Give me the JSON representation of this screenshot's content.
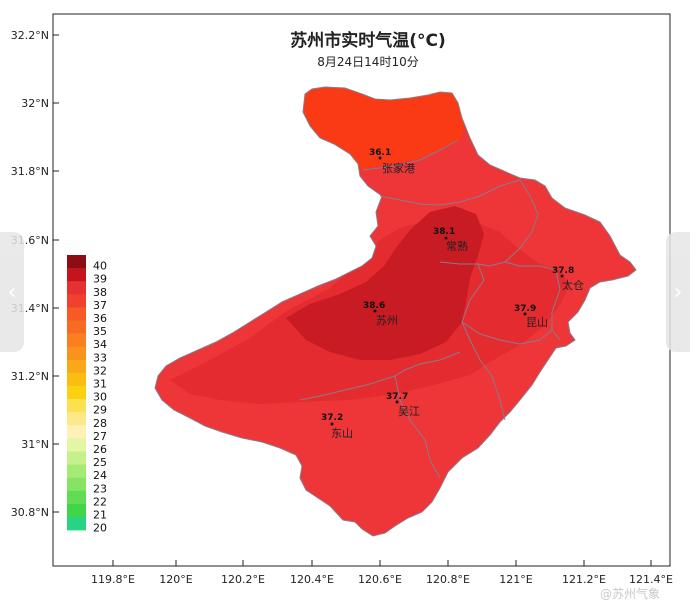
{
  "title": "苏州市实时气温(°C)",
  "subtitle": "8月24日14时10分",
  "lat_ticks": [
    "32.2°N",
    "32°N",
    "31.8°N",
    "31.6°N",
    "31.4°N",
    "31.2°N",
    "31°N",
    "30.8°N"
  ],
  "lon_ticks": [
    "119.8°E",
    "120°E",
    "120.2°E",
    "120.4°E",
    "120.6°E",
    "120.8°E",
    "121°E",
    "121.2°E",
    "121.4°E"
  ],
  "legend": {
    "levels": [
      "40",
      "39",
      "38",
      "37",
      "36",
      "35",
      "34",
      "33",
      "32",
      "31",
      "30",
      "29",
      "28",
      "27",
      "26",
      "25",
      "24",
      "23",
      "22",
      "21",
      "20"
    ],
    "colors": [
      "#8c0d13",
      "#c4151f",
      "#e5312f",
      "#f2402e",
      "#f75a25",
      "#f86b22",
      "#f97f20",
      "#fa931b",
      "#fba818",
      "#fcbd13",
      "#fcd10f",
      "#fde050",
      "#fde98a",
      "#fef2b7",
      "#e2f6a6",
      "#c6f08b",
      "#a6ea76",
      "#85e365",
      "#62dc55",
      "#41d649",
      "#28d481"
    ]
  },
  "stations": [
    {
      "name": "张家港",
      "value": "36.1"
    },
    {
      "name": "常熟",
      "value": "38.1"
    },
    {
      "name": "太仓",
      "value": "37.8"
    },
    {
      "name": "苏州",
      "value": "38.6"
    },
    {
      "name": "昆山",
      "value": "37.9"
    },
    {
      "name": "吴江",
      "value": "37.7"
    },
    {
      "name": "东山",
      "value": "37.2"
    }
  ],
  "colors": {
    "band_36": "#fa3a14",
    "band_37": "#ee3538",
    "band_38": "#e42c30",
    "band_39": "#c81b23",
    "boundary": "#8a7b8b"
  },
  "watermark": "@苏州气象",
  "nav": {
    "prev_icon": "chevron-left-icon",
    "next_icon": "chevron-right-icon",
    "prev_glyph": "‹",
    "next_glyph": "›"
  }
}
